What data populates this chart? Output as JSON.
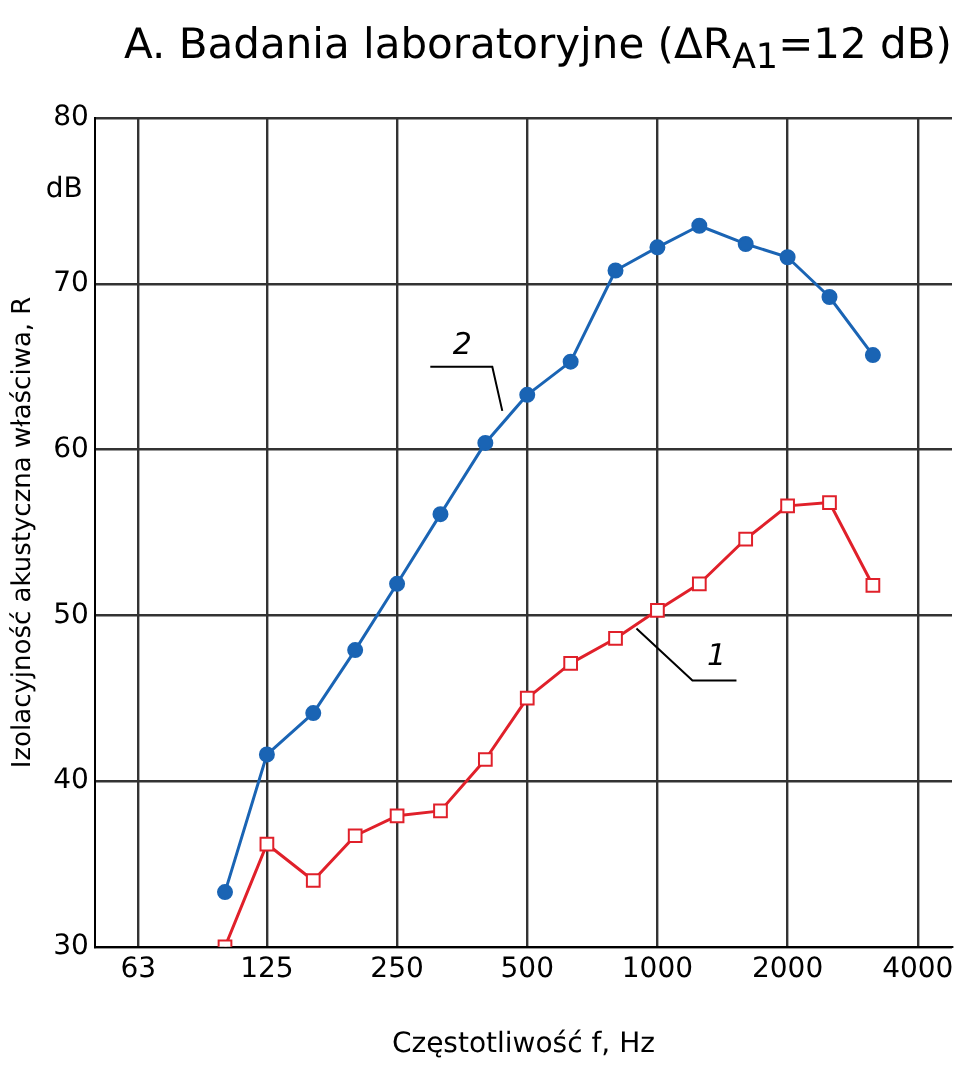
{
  "chart_data": {
    "type": "line",
    "title": "A. Badania laboratoryjne (ΔR$_{A1}$=12 dB)",
    "xlabel": "Częstotliwość f, Hz",
    "ylabel": "Izolacyjność akustyczna właściwa, R",
    "annotations": [
      "dB"
    ],
    "x": [
      100,
      125,
      160,
      200,
      250,
      315,
      400,
      500,
      630,
      800,
      1000,
      1250,
      1600,
      2000,
      2500,
      3150
    ],
    "series": [
      {
        "name": "1",
        "color": "#e0202a",
        "marker": "square",
        "values": [
          30,
          36.2,
          34.0,
          36.7,
          37.9,
          38.2,
          41.3,
          45.0,
          47.1,
          48.6,
          50.3,
          51.9,
          54.6,
          56.6,
          56.8,
          51.8
        ]
      },
      {
        "name": "2",
        "color": "#1a64b4",
        "marker": "circle",
        "values": [
          33.3,
          41.6,
          44.1,
          47.9,
          51.9,
          56.1,
          60.4,
          63.3,
          65.3,
          70.8,
          72.2,
          73.5,
          72.4,
          71.6,
          69.2,
          65.7
        ]
      }
    ],
    "log": "x",
    "xlim": [
      50,
      4800
    ],
    "xticks": [
      63,
      125,
      250,
      500,
      1000,
      2000,
      4000
    ],
    "ylim": [
      30,
      80
    ],
    "yticks": [
      30,
      40,
      50,
      60,
      70,
      80
    ],
    "grid": true,
    "legend": false,
    "line_style": "solid"
  }
}
